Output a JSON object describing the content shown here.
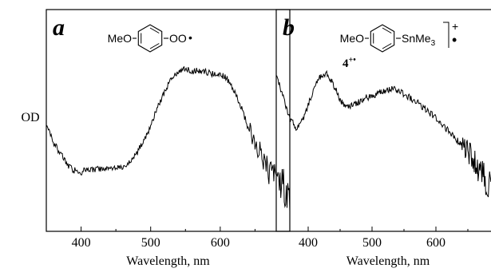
{
  "y_axis_label": "OD",
  "chart_data": [
    {
      "type": "line",
      "panel_label": "a",
      "xlabel": "Wavelength, nm",
      "ylabel": "OD",
      "xlim": [
        350,
        700
      ],
      "xticks": [
        400,
        500,
        600
      ],
      "xtick_labels": [
        "400",
        "500",
        "600"
      ],
      "structure": {
        "left": "MeO",
        "right": "OO",
        "radical": "•"
      },
      "series": [
        {
          "x": [
            350,
            360,
            370,
            380,
            390,
            400,
            410,
            420,
            430,
            440,
            450,
            460,
            470,
            480,
            490,
            500,
            510,
            520,
            530,
            540,
            550,
            560,
            570,
            580,
            590,
            600,
            610,
            620,
            630,
            640,
            650,
            660,
            670,
            680,
            690,
            700
          ],
          "y": [
            0.45,
            0.36,
            0.3,
            0.24,
            0.21,
            0.2,
            0.21,
            0.21,
            0.22,
            0.22,
            0.22,
            0.23,
            0.26,
            0.3,
            0.37,
            0.45,
            0.55,
            0.63,
            0.7,
            0.74,
            0.76,
            0.74,
            0.75,
            0.74,
            0.73,
            0.73,
            0.7,
            0.64,
            0.55,
            0.44,
            0.36,
            0.29,
            0.22,
            0.16,
            0.12,
            0.08
          ]
        }
      ]
    },
    {
      "type": "line",
      "panel_label": "b",
      "xlabel": "Wavelength, nm",
      "ylabel": "",
      "xlim": [
        350,
        700
      ],
      "xticks": [
        400,
        500,
        600
      ],
      "xtick_labels": [
        "400",
        "500",
        "600"
      ],
      "structure": {
        "left": "MeO",
        "right_main": "SnMe",
        "right_sub": "3",
        "charge": "+",
        "radical": "•",
        "compound": "4",
        "compound_charge": "+•"
      },
      "series": [
        {
          "x": [
            350,
            360,
            370,
            380,
            390,
            400,
            410,
            420,
            430,
            440,
            450,
            460,
            470,
            480,
            490,
            500,
            510,
            520,
            530,
            540,
            550,
            560,
            570,
            580,
            590,
            600,
            610,
            620,
            630,
            640,
            650,
            660,
            670,
            680,
            690,
            700
          ],
          "y": [
            0.72,
            0.62,
            0.5,
            0.44,
            0.47,
            0.56,
            0.66,
            0.72,
            0.73,
            0.67,
            0.59,
            0.55,
            0.56,
            0.58,
            0.6,
            0.61,
            0.63,
            0.64,
            0.65,
            0.64,
            0.62,
            0.6,
            0.58,
            0.55,
            0.52,
            0.49,
            0.45,
            0.42,
            0.38,
            0.35,
            0.31,
            0.26,
            0.2,
            0.14,
            0.09,
            0.05
          ]
        }
      ]
    }
  ]
}
